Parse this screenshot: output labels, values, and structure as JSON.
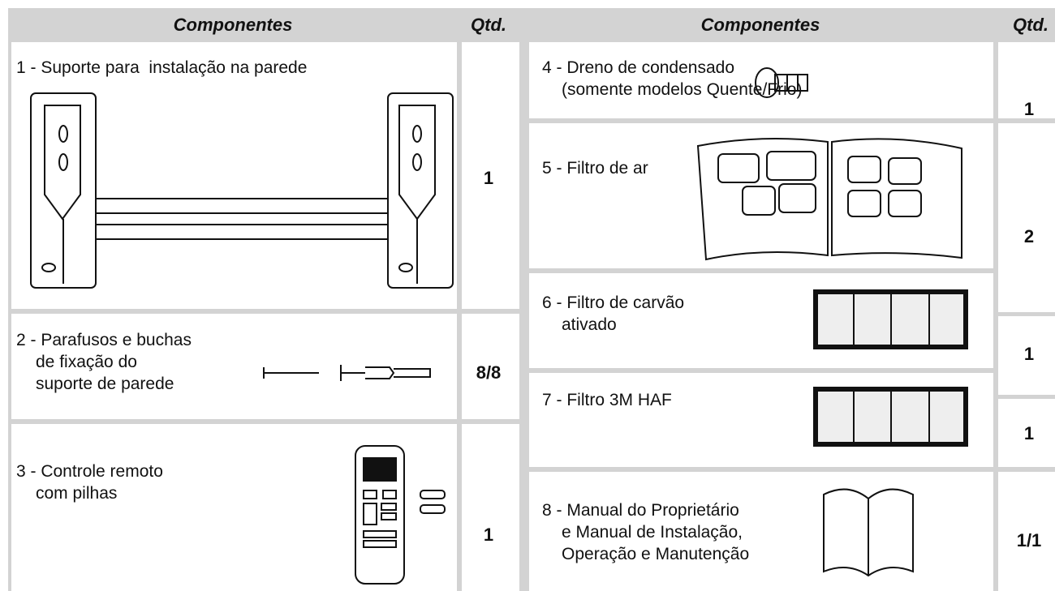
{
  "header": {
    "components_left": "Componentes",
    "qty_left": "Qtd.",
    "components_right": "Componentes",
    "qty_right": "Qtd."
  },
  "items": [
    {
      "lines": [
        "1 - Suporte para  instalação na parede"
      ],
      "qty": 1
    },
    {
      "lines": [
        "2 - Parafusos e buchas",
        "de fixação do",
        "suporte de parede"
      ],
      "qty": "8/8"
    },
    {
      "lines": [
        "3 - Controle remoto",
        "com pilhas"
      ],
      "qty": 1
    },
    {
      "lines": [
        "4 - Dreno de condensado",
        "(somente modelos Quente/Frio)"
      ],
      "qty": 1
    },
    {
      "lines": [
        "5 - Filtro de ar"
      ],
      "qty": 2
    },
    {
      "lines": [
        "6 - Filtro de carvão",
        "ativado"
      ],
      "qty": 1
    },
    {
      "lines": [
        "7 - Filtro 3M HAF"
      ],
      "qty": 1
    },
    {
      "lines": [
        "8 - Manual do Proprietário",
        "e Manual de Instalação,",
        "Operação e Manutenção"
      ],
      "qty": "1/1"
    }
  ]
}
